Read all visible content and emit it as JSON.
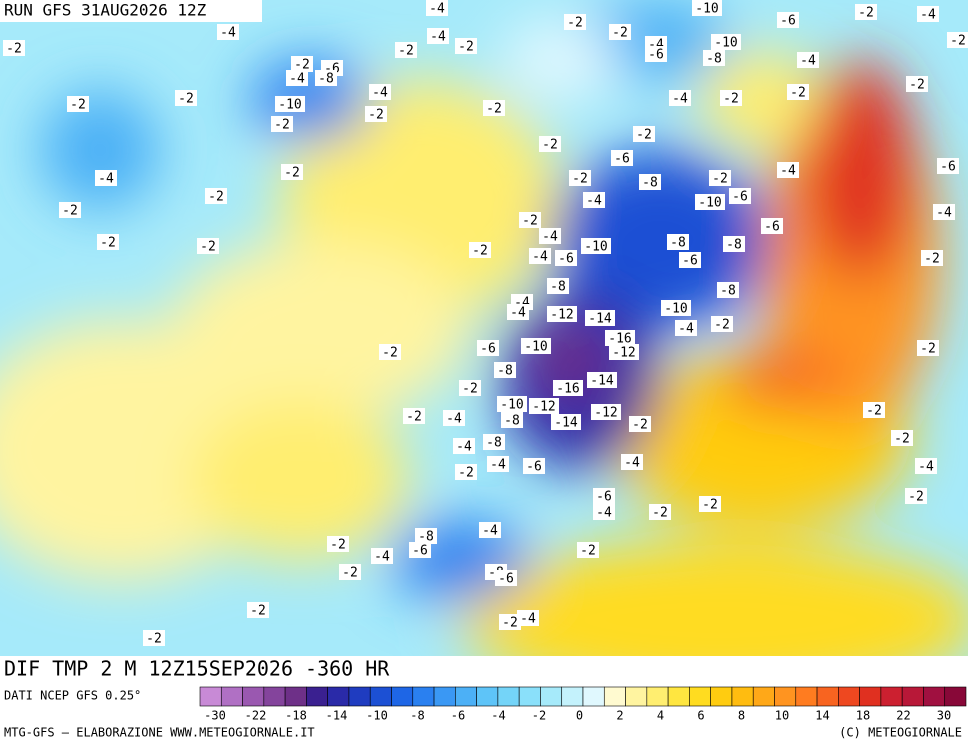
{
  "header": {
    "run": "RUN GFS 31AUG2026 12Z"
  },
  "map": {
    "contour_labels": [
      "-4",
      "-2",
      "-2",
      "-10",
      "-6",
      "-2",
      "-4",
      "-4",
      "-2",
      "-2",
      "-4",
      "-10",
      "-8",
      "-6",
      "-2",
      "-4",
      "-2",
      "-6",
      "-4",
      "-8",
      "-4",
      "-10",
      "-2",
      "-2",
      "-2",
      "-2",
      "-2",
      "-4",
      "-2",
      "-2",
      "-4",
      "-2",
      "-2",
      "-2",
      "-2",
      "-6",
      "-4",
      "-2",
      "-2",
      "-2",
      "-2",
      "-2",
      "-2",
      "-4",
      "-8",
      "-2",
      "-10",
      "-6",
      "-4",
      "-6",
      "-4",
      "-6",
      "-2",
      "-4",
      "-2",
      "-4",
      "-6",
      "-10",
      "-8",
      "-8",
      "-6",
      "-2",
      "-8",
      "-8",
      "-4",
      "-4",
      "-12",
      "-14",
      "-10",
      "-4",
      "-2",
      "-2",
      "-6",
      "-10",
      "-16",
      "-12",
      "-8",
      "-2",
      "-16",
      "-14",
      "-2",
      "-4",
      "-10",
      "-12",
      "-8",
      "-12",
      "-14",
      "-2",
      "-2",
      "-2",
      "-2",
      "-4",
      "-8",
      "-2",
      "-4",
      "-6",
      "-4",
      "-4",
      "-6",
      "-4",
      "-2",
      "-2",
      "-2",
      "-4",
      "-8",
      "-6",
      "-4",
      "-2",
      "-2",
      "-2",
      "-8",
      "-6",
      "-2",
      "-4",
      "-2",
      "-2"
    ]
  },
  "footer": {
    "field": "DIF TMP 2 M 12Z15SEP2026 -360 HR",
    "source": "DATI NCEP GFS 0.25°",
    "credit_left": "MTG-GFS — ELABORAZIONE WWW.METEOGIORNALE.IT",
    "credit_right": "(C) METEOGIORNALE"
  },
  "legend": {
    "colors": [
      "#c88ad6",
      "#b070c4",
      "#9a58b0",
      "#84449c",
      "#6e3088",
      "#3a2090",
      "#2a2aa8",
      "#1f3cc0",
      "#1c50d4",
      "#1e66e6",
      "#2a80f0",
      "#3a98f4",
      "#4cb0f6",
      "#5ec4f8",
      "#74d4f8",
      "#8ae0fa",
      "#a6eafa",
      "#c4f2fc",
      "#e0f8fe",
      "#fffad0",
      "#fff4a0",
      "#ffee70",
      "#ffe640",
      "#ffdc20",
      "#ffcc10",
      "#ffbc10",
      "#ffa818",
      "#ff9420",
      "#ff7c20",
      "#f86420",
      "#ee4820",
      "#e03020",
      "#cc2030",
      "#b81838",
      "#a01040",
      "#880838"
    ],
    "labels": [
      -30,
      -22,
      -18,
      -14,
      -10,
      -8,
      -6,
      -4,
      -2,
      0,
      2,
      4,
      6,
      8,
      10,
      14,
      18,
      22,
      30
    ]
  }
}
